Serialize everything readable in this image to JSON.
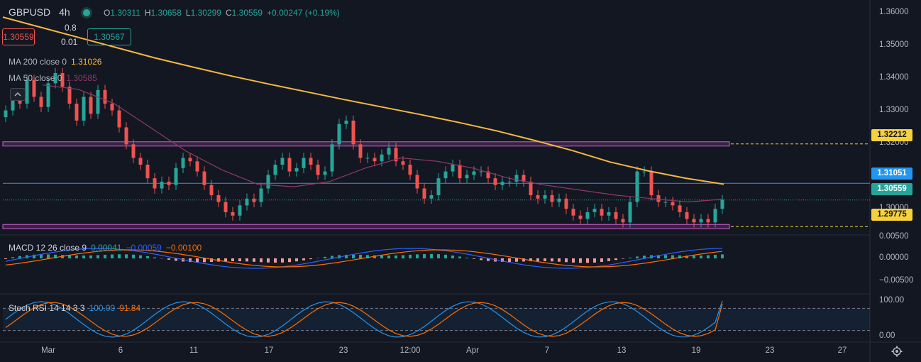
{
  "header": {
    "symbol": "GBPUSD",
    "timeframe": "4h",
    "o_label": "O",
    "open": "1.30311",
    "h_label": "H",
    "high": "1.30658",
    "l_label": "L",
    "low": "1.30299",
    "c_label": "C",
    "close": "1.30559",
    "change": "+0.00247 (+0.19%)"
  },
  "trade": {
    "sell": "1.30559",
    "buy": "1.30567",
    "spread": "0.8",
    "lot": "0.01"
  },
  "indicators": {
    "ma200": {
      "label": "MA 200 close 0",
      "value": "1.31026"
    },
    "ma50": {
      "label": "MA 50 close 0",
      "value": "1.30585"
    },
    "macd": {
      "label": "MACD 12 26 close 9",
      "hist": "0.00041",
      "macd": "−0.00059",
      "signal": "−0.00100"
    },
    "stochrsi": {
      "label": "Stoch RSI 14 14 3 3",
      "k": "100.00",
      "d": "91.84"
    }
  },
  "tags": {
    "resistance": "1.32212",
    "hline": "1.31051",
    "last": "1.30559",
    "support": "1.29775"
  },
  "price_axis": [
    "1.36000",
    "1.35000",
    "1.34000",
    "1.33000",
    "1.32000",
    "1.31000",
    "1.30000"
  ],
  "macd_axis": [
    "0.00500",
    "0.00000",
    "−0.00500"
  ],
  "rsi_axis": [
    "100.00",
    "0.00"
  ],
  "time_axis": [
    "Mar",
    "6",
    "11",
    "17",
    "23",
    "12:00",
    "Apr",
    "7",
    "13",
    "19",
    "23",
    "27"
  ],
  "colors": {
    "up": "#26a69a",
    "down": "#ef5350",
    "ma200": "#f5b841",
    "ma50": "#8e3a6a",
    "hline": "#2196f3",
    "zone": "#d05fd0"
  },
  "chart_data": {
    "type": "candlestick",
    "levels": {
      "resistance": 1.32212,
      "hline": 1.31051,
      "last": 1.30559,
      "support": 1.29775
    },
    "y_range": [
      1.2955,
      1.3635
    ],
    "close_path": [
      1.332,
      1.336,
      1.334,
      1.341,
      1.336,
      1.333,
      1.34,
      1.343,
      1.339,
      1.334,
      1.329,
      1.336,
      1.331,
      1.338,
      1.334,
      1.332,
      1.327,
      1.322,
      1.318,
      1.316,
      1.312,
      1.309,
      1.311,
      1.31,
      1.315,
      1.318,
      1.317,
      1.314,
      1.31,
      1.307,
      1.305,
      1.302,
      1.301,
      1.304,
      1.306,
      1.305,
      1.309,
      1.313,
      1.316,
      1.318,
      1.314,
      1.315,
      1.318,
      1.316,
      1.313,
      1.314,
      1.322,
      1.328,
      1.329,
      1.322,
      1.318,
      1.318,
      1.317,
      1.319,
      1.321,
      1.317,
      1.316,
      1.313,
      1.309,
      1.306,
      1.307,
      1.312,
      1.314,
      1.316,
      1.312,
      1.313,
      1.314,
      1.314,
      1.312,
      1.31,
      1.311,
      1.311,
      1.313,
      1.311,
      1.307,
      1.306,
      1.307,
      1.305,
      1.306,
      1.303,
      1.301,
      1.3,
      1.302,
      1.303,
      1.301,
      1.302,
      1.3,
      1.299,
      1.305,
      1.314,
      1.314,
      1.307,
      1.305,
      1.305,
      1.304,
      1.302,
      1.3,
      1.299,
      1.3,
      1.299,
      1.303,
      1.30559
    ],
    "ma200": [
      1.3595,
      1.3565,
      1.3535,
      1.3505,
      1.3475,
      1.3448,
      1.3422,
      1.3398,
      1.3375,
      1.3352,
      1.333,
      1.3308,
      1.3285,
      1.326,
      1.3232,
      1.3202,
      1.3168,
      1.3142,
      1.312,
      1.31026
    ],
    "ma50": [
      1.3395,
      1.3382,
      1.334,
      1.327,
      1.32,
      1.3145,
      1.3102,
      1.3095,
      1.311,
      1.315,
      1.318,
      1.317,
      1.315,
      1.312,
      1.31,
      1.3085,
      1.307,
      1.306,
      1.305,
      1.30585
    ],
    "stochrsi": {
      "k": 100.0,
      "d": 91.84
    },
    "macd_values": {
      "hist": 0.00041,
      "macd": -0.00059,
      "signal": -0.001
    }
  }
}
